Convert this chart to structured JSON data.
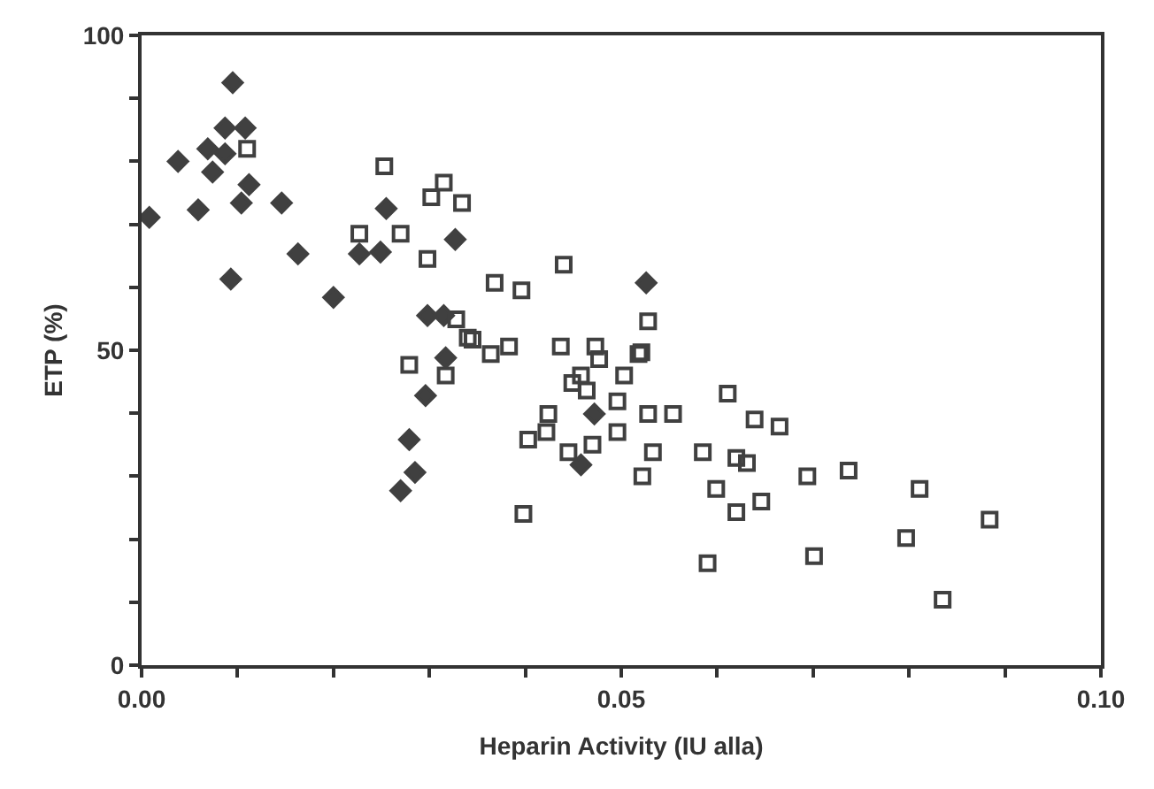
{
  "chart_data": {
    "type": "scatter",
    "xlabel": "Heparin Activity (IU alla)",
    "ylabel": "ETP (%)",
    "xlim": [
      0,
      0.1
    ],
    "ylim": [
      0,
      100
    ],
    "xticks": [
      {
        "value": 0,
        "label": "0.00"
      },
      {
        "value": 0.01,
        "label": null
      },
      {
        "value": 0.02,
        "label": null
      },
      {
        "value": 0.03,
        "label": null
      },
      {
        "value": 0.04,
        "label": null
      },
      {
        "value": 0.05,
        "label": "0.05"
      },
      {
        "value": 0.06,
        "label": null
      },
      {
        "value": 0.07,
        "label": null
      },
      {
        "value": 0.08,
        "label": null
      },
      {
        "value": 0.09,
        "label": null
      },
      {
        "value": 0.1,
        "label": "0.10"
      }
    ],
    "yticks": [
      0,
      {
        "value": 10,
        "label": null
      },
      {
        "value": 20,
        "label": null
      },
      {
        "value": 30,
        "label": null
      },
      {
        "value": 40,
        "label": null
      },
      50,
      {
        "value": 60,
        "label": null
      },
      {
        "value": 70,
        "label": null
      },
      {
        "value": 80,
        "label": null
      },
      {
        "value": 90,
        "label": null
      },
      100
    ],
    "series": [
      {
        "color": "#404040",
        "marker": "diamond",
        "x": [
          0.0095,
          0.0087,
          0.0108,
          0.0069,
          0.0087,
          0.0038,
          0.0074,
          0.0112,
          0.0059,
          0.0104,
          0.0146,
          0.0008,
          0.0255,
          0.0163,
          0.0227,
          0.0249,
          0.0327,
          0.0093,
          0.02,
          0.0298,
          0.0315,
          0.0317,
          0.0526,
          0.0472,
          0.0458,
          0.0279,
          0.0285,
          0.027,
          0.0296
        ],
        "values": [
          92.5,
          85.3,
          85.3,
          82,
          81.2,
          80,
          78.3,
          76.3,
          72.3,
          73.4,
          73.4,
          71.1,
          72.5,
          65.3,
          65.3,
          65.6,
          67.6,
          61.3,
          58.4,
          55.5,
          55.5,
          48.8,
          60.7,
          39.9,
          31.8,
          35.8,
          30.6,
          27.7,
          42.8
        ]
      },
      {
        "color": "#404040",
        "marker": "square-open",
        "x": [
          0.011,
          0.0253,
          0.0302,
          0.0315,
          0.0334,
          0.0227,
          0.027,
          0.0298,
          0.0328,
          0.034,
          0.0279,
          0.0317,
          0.0368,
          0.0396,
          0.044,
          0.0345,
          0.0364,
          0.0383,
          0.0437,
          0.0473,
          0.0477,
          0.0518,
          0.0503,
          0.0458,
          0.0449,
          0.0464,
          0.0496,
          0.0424,
          0.0422,
          0.0403,
          0.0445,
          0.047,
          0.0496,
          0.0398,
          0.0528,
          0.0521,
          0.0528,
          0.0554,
          0.0533,
          0.0522,
          0.0585,
          0.0611,
          0.0639,
          0.0665,
          0.062,
          0.0631,
          0.0599,
          0.062,
          0.0646,
          0.0694,
          0.0737,
          0.059,
          0.0701,
          0.0811,
          0.0797,
          0.0884,
          0.0835
        ],
        "values": [
          82,
          79.2,
          74.3,
          76.6,
          73.4,
          68.5,
          68.5,
          64.5,
          54.9,
          52,
          47.7,
          46,
          60.7,
          59.5,
          63.6,
          51.7,
          49.4,
          50.6,
          50.6,
          50.6,
          48.6,
          49.4,
          46,
          46,
          44.8,
          43.6,
          41.9,
          39.9,
          37,
          35.8,
          33.8,
          35,
          37,
          24,
          54.6,
          49.7,
          39.9,
          39.9,
          33.8,
          30,
          33.8,
          43.1,
          39,
          37.9,
          32.9,
          32.1,
          28,
          24.3,
          26,
          30,
          30.9,
          16.2,
          17.3,
          28,
          20.2,
          23.1,
          10.4
        ]
      }
    ]
  }
}
